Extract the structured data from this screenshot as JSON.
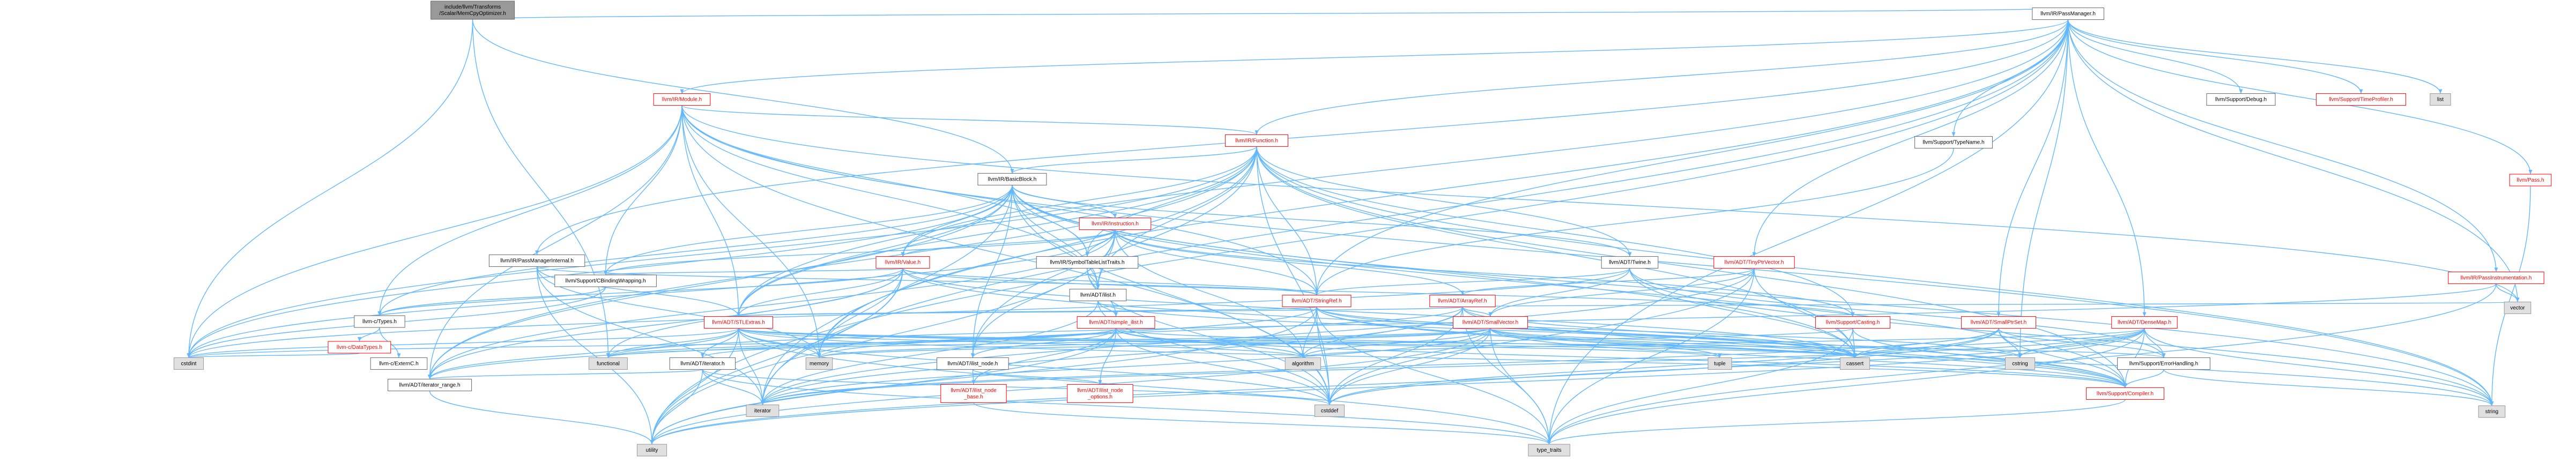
{
  "diagram": {
    "nodes": [
      {
        "id": "root",
        "lines": [
          "include/llvm/Transforms",
          "/Scalar/MemCpyOptimizer.h"
        ],
        "style": "root"
      },
      {
        "id": "passmanager",
        "lines": [
          "llvm/IR/PassManager.h"
        ],
        "style": "white"
      },
      {
        "id": "module",
        "lines": [
          "llvm/IR/Module.h"
        ],
        "style": "red"
      },
      {
        "id": "function",
        "lines": [
          "llvm/IR/Function.h"
        ],
        "style": "red"
      },
      {
        "id": "basicblock",
        "lines": [
          "llvm/IR/BasicBlock.h"
        ],
        "style": "white"
      },
      {
        "id": "instruction",
        "lines": [
          "llvm/IR/Instruction.h"
        ],
        "style": "red"
      },
      {
        "id": "passmanagerinternal",
        "lines": [
          "llvm/IR/PassManagerInternal.h"
        ],
        "style": "white"
      },
      {
        "id": "value",
        "lines": [
          "llvm/IR/Value.h"
        ],
        "style": "red"
      },
      {
        "id": "symboltable",
        "lines": [
          "llvm/IR/SymbolTableListTraits.h"
        ],
        "style": "white"
      },
      {
        "id": "twine",
        "lines": [
          "llvm/ADT/Twine.h"
        ],
        "style": "white"
      },
      {
        "id": "tinyptrvector",
        "lines": [
          "llvm/ADT/TinyPtrVector.h"
        ],
        "style": "red"
      },
      {
        "id": "cbinding",
        "lines": [
          "llvm/Support/CBindingWrapping.h"
        ],
        "style": "white"
      },
      {
        "id": "ilist",
        "lines": [
          "llvm/ADT/ilist.h"
        ],
        "style": "white"
      },
      {
        "id": "stringref",
        "lines": [
          "llvm/ADT/StringRef.h"
        ],
        "style": "red"
      },
      {
        "id": "arrayref",
        "lines": [
          "llvm/ADT/ArrayRef.h"
        ],
        "style": "red"
      },
      {
        "id": "ctypes",
        "lines": [
          "llvm-c/Types.h"
        ],
        "style": "white"
      },
      {
        "id": "stlextras",
        "lines": [
          "llvm/ADT/STLExtras.h"
        ],
        "style": "red"
      },
      {
        "id": "simpleilist",
        "lines": [
          "llvm/ADT/simple_ilist.h"
        ],
        "style": "red"
      },
      {
        "id": "smallvector",
        "lines": [
          "llvm/ADT/SmallVector.h"
        ],
        "style": "red"
      },
      {
        "id": "casting",
        "lines": [
          "llvm/Support/Casting.h"
        ],
        "style": "red"
      },
      {
        "id": "smallptrset",
        "lines": [
          "llvm/ADT/SmallPtrSet.h"
        ],
        "style": "red"
      },
      {
        "id": "densemap",
        "lines": [
          "llvm/ADT/DenseMap.h"
        ],
        "style": "red"
      },
      {
        "id": "datatypes",
        "lines": [
          "llvm-c/DataTypes.h"
        ],
        "style": "red"
      },
      {
        "id": "externc",
        "lines": [
          "llvm-c/ExternC.h"
        ],
        "style": "white"
      },
      {
        "id": "iterator",
        "lines": [
          "llvm/ADT/iterator.h"
        ],
        "style": "white"
      },
      {
        "id": "ilistnode",
        "lines": [
          "llvm/ADT/ilist_node.h"
        ],
        "style": "white"
      },
      {
        "id": "iteratorrange",
        "lines": [
          "llvm/ADT/iterator_range.h"
        ],
        "style": "white"
      },
      {
        "id": "ilistnodebase",
        "lines": [
          "llvm/ADT/ilist_node",
          "_base.h"
        ],
        "style": "red"
      },
      {
        "id": "ilistnodeoptions",
        "lines": [
          "llvm/ADT/ilist_node",
          "_options.h"
        ],
        "style": "red"
      },
      {
        "id": "compiler",
        "lines": [
          "llvm/Support/Compiler.h"
        ],
        "style": "red"
      },
      {
        "id": "errorhandling",
        "lines": [
          "llvm/Support/ErrorHandling.h"
        ],
        "style": "white"
      },
      {
        "id": "typename",
        "lines": [
          "llvm/Support/TypeName.h"
        ],
        "style": "white"
      },
      {
        "id": "debug",
        "lines": [
          "llvm/Support/Debug.h"
        ],
        "style": "white"
      },
      {
        "id": "timeprofiler",
        "lines": [
          "llvm/Support/TimeProfiler.h"
        ],
        "style": "red"
      },
      {
        "id": "list",
        "lines": [
          "list"
        ],
        "style": "grey"
      },
      {
        "id": "pass",
        "lines": [
          "llvm/Pass.h"
        ],
        "style": "red"
      },
      {
        "id": "passinstrumentation",
        "lines": [
          "llvm/IR/PassInstrumentation.h"
        ],
        "style": "red"
      },
      {
        "id": "vector",
        "lines": [
          "vector"
        ],
        "style": "grey"
      },
      {
        "id": "cstdint",
        "lines": [
          "cstdint"
        ],
        "style": "grey"
      },
      {
        "id": "functional",
        "lines": [
          "functional"
        ],
        "style": "grey"
      },
      {
        "id": "memory",
        "lines": [
          "memory"
        ],
        "style": "grey"
      },
      {
        "id": "algorithm",
        "lines": [
          "algorithm"
        ],
        "style": "grey"
      },
      {
        "id": "tuple",
        "lines": [
          "tuple"
        ],
        "style": "grey"
      },
      {
        "id": "cassert",
        "lines": [
          "cassert"
        ],
        "style": "grey"
      },
      {
        "id": "cstring",
        "lines": [
          "cstring"
        ],
        "style": "grey"
      },
      {
        "id": "iteratorstd",
        "lines": [
          "iterator"
        ],
        "style": "grey"
      },
      {
        "id": "cstddef",
        "lines": [
          "cstddef"
        ],
        "style": "grey"
      },
      {
        "id": "utility",
        "lines": [
          "utility"
        ],
        "style": "grey"
      },
      {
        "id": "typetraits",
        "lines": [
          "type_traits"
        ],
        "style": "grey"
      },
      {
        "id": "string",
        "lines": [
          "string"
        ],
        "style": "grey"
      }
    ],
    "edges": [
      [
        "root",
        "passmanager"
      ],
      [
        "root",
        "cstdint"
      ],
      [
        "root",
        "basicblock"
      ],
      [
        "root",
        "functional"
      ],
      [
        "passmanager",
        "module"
      ],
      [
        "passmanager",
        "function"
      ],
      [
        "passmanager",
        "passmanagerinternal"
      ],
      [
        "passmanager",
        "typename"
      ],
      [
        "passmanager",
        "debug"
      ],
      [
        "passmanager",
        "timeprofiler"
      ],
      [
        "passmanager",
        "list"
      ],
      [
        "passmanager",
        "pass"
      ],
      [
        "passmanager",
        "passinstrumentation"
      ],
      [
        "passmanager",
        "tinyptrvector"
      ],
      [
        "passmanager",
        "smallptrset"
      ],
      [
        "passmanager",
        "densemap"
      ],
      [
        "passmanager",
        "stringref"
      ],
      [
        "passmanager",
        "stlextras"
      ],
      [
        "passmanager",
        "vector"
      ],
      [
        "passmanager",
        "cstring"
      ],
      [
        "passmanager",
        "memory"
      ],
      [
        "passmanager",
        "typetraits"
      ],
      [
        "passmanager",
        "utility"
      ],
      [
        "passmanager",
        "iteratorstd"
      ],
      [
        "module",
        "function"
      ],
      [
        "module",
        "stringref"
      ],
      [
        "module",
        "ctypes"
      ],
      [
        "module",
        "cbinding"
      ],
      [
        "module",
        "iteratorrange"
      ],
      [
        "module",
        "stlextras"
      ],
      [
        "module",
        "symboltable"
      ],
      [
        "module",
        "ilist"
      ],
      [
        "module",
        "cstddef"
      ],
      [
        "module",
        "cstdint"
      ],
      [
        "module",
        "memory"
      ],
      [
        "module",
        "string"
      ],
      [
        "module",
        "vector"
      ],
      [
        "function",
        "basicblock"
      ],
      [
        "function",
        "twine"
      ],
      [
        "function",
        "ilist"
      ],
      [
        "function",
        "stringref"
      ],
      [
        "function",
        "value"
      ],
      [
        "function",
        "symboltable"
      ],
      [
        "function",
        "casting"
      ],
      [
        "function",
        "compiler"
      ],
      [
        "function",
        "stlextras"
      ],
      [
        "function",
        "cassert"
      ],
      [
        "function",
        "cstddef"
      ],
      [
        "function",
        "cstdint"
      ],
      [
        "function",
        "memory"
      ],
      [
        "function",
        "string"
      ],
      [
        "function",
        "iteratorrange"
      ],
      [
        "function",
        "ilistnode"
      ],
      [
        "basicblock",
        "instruction"
      ],
      [
        "basicblock",
        "value"
      ],
      [
        "basicblock",
        "symboltable"
      ],
      [
        "basicblock",
        "twine"
      ],
      [
        "basicblock",
        "ilist"
      ],
      [
        "basicblock",
        "ilistnode"
      ],
      [
        "basicblock",
        "iteratorstd"
      ],
      [
        "basicblock",
        "ctypes"
      ],
      [
        "basicblock",
        "cbinding"
      ],
      [
        "basicblock",
        "compiler"
      ],
      [
        "basicblock",
        "cassert"
      ],
      [
        "basicblock",
        "cstddef"
      ],
      [
        "basicblock",
        "iteratorrange"
      ],
      [
        "basicblock",
        "stlextras"
      ],
      [
        "basicblock",
        "cstdint"
      ],
      [
        "basicblock",
        "string"
      ],
      [
        "instruction",
        "value"
      ],
      [
        "instruction",
        "symboltable"
      ],
      [
        "instruction",
        "arrayref"
      ],
      [
        "instruction",
        "stringref"
      ],
      [
        "instruction",
        "ilist"
      ],
      [
        "instruction",
        "ilistnode"
      ],
      [
        "instruction",
        "casting"
      ],
      [
        "instruction",
        "cstdint"
      ],
      [
        "instruction",
        "utility"
      ],
      [
        "instruction",
        "iteratorrange"
      ],
      [
        "instruction",
        "cbinding"
      ],
      [
        "instruction",
        "algorithm"
      ],
      [
        "passmanagerinternal",
        "stlextras"
      ],
      [
        "passmanagerinternal",
        "stringref"
      ],
      [
        "passmanagerinternal",
        "memory"
      ],
      [
        "passmanagerinternal",
        "utility"
      ],
      [
        "passmanagerinternal",
        "iteratorstd"
      ],
      [
        "value",
        "ctypes"
      ],
      [
        "value",
        "cbinding"
      ],
      [
        "value",
        "stlextras"
      ],
      [
        "value",
        "stringref"
      ],
      [
        "value",
        "iteratorrange"
      ],
      [
        "value",
        "casting"
      ],
      [
        "value",
        "compiler"
      ],
      [
        "value",
        "cassert"
      ],
      [
        "value",
        "iteratorstd"
      ],
      [
        "value",
        "memory"
      ],
      [
        "value",
        "functional"
      ],
      [
        "value",
        "utility"
      ],
      [
        "symboltable",
        "ilist"
      ],
      [
        "symboltable",
        "simpleilist"
      ],
      [
        "symboltable",
        "cstddef"
      ],
      [
        "twine",
        "smallvector"
      ],
      [
        "twine",
        "stringref"
      ],
      [
        "twine",
        "errorhandling"
      ],
      [
        "twine",
        "cassert"
      ],
      [
        "twine",
        "cstdint"
      ],
      [
        "twine",
        "string"
      ],
      [
        "tinyptrvector",
        "arrayref"
      ],
      [
        "tinyptrvector",
        "smallvector"
      ],
      [
        "tinyptrvector",
        "cassert"
      ],
      [
        "tinyptrvector",
        "cstddef"
      ],
      [
        "tinyptrvector",
        "iteratorstd"
      ],
      [
        "tinyptrvector",
        "typetraits"
      ],
      [
        "cbinding",
        "ctypes"
      ],
      [
        "cbinding",
        "cstdint"
      ],
      [
        "ilist",
        "simpleilist"
      ],
      [
        "ilist",
        "cassert"
      ],
      [
        "ilist",
        "cstddef"
      ],
      [
        "ilist",
        "iteratorstd"
      ],
      [
        "stringref",
        "stlextras"
      ],
      [
        "stringref",
        "iteratorrange"
      ],
      [
        "stringref",
        "compiler"
      ],
      [
        "stringref",
        "algorithm"
      ],
      [
        "stringref",
        "cassert"
      ],
      [
        "stringref",
        "cstddef"
      ],
      [
        "stringref",
        "cstring"
      ],
      [
        "stringref",
        "limits"
      ],
      [
        "stringref",
        "string"
      ],
      [
        "stringref",
        "typetraits"
      ],
      [
        "stringref",
        "utility"
      ],
      [
        "arrayref",
        "stlextras"
      ],
      [
        "arrayref",
        "smallvector"
      ],
      [
        "arrayref",
        "compiler"
      ],
      [
        "arrayref",
        "algorithm"
      ],
      [
        "arrayref",
        "cassert"
      ],
      [
        "arrayref",
        "cstddef"
      ],
      [
        "arrayref",
        "iteratorstd"
      ],
      [
        "arrayref",
        "memory"
      ],
      [
        "arrayref",
        "typetraits"
      ],
      [
        "arrayref",
        "vector"
      ],
      [
        "ctypes",
        "datatypes"
      ],
      [
        "ctypes",
        "externc"
      ],
      [
        "stlextras",
        "iterator"
      ],
      [
        "stlextras",
        "iteratorrange"
      ],
      [
        "stlextras",
        "compiler"
      ],
      [
        "stlextras",
        "algorithm"
      ],
      [
        "stlextras",
        "cassert"
      ],
      [
        "stlextras",
        "cstddef"
      ],
      [
        "stlextras",
        "cstdint"
      ],
      [
        "stlextras",
        "functional"
      ],
      [
        "stlextras",
        "memory"
      ],
      [
        "stlextras",
        "tuple"
      ],
      [
        "stlextras",
        "typetraits"
      ],
      [
        "stlextras",
        "utility"
      ],
      [
        "stlextras",
        "iteratorstd"
      ],
      [
        "stlextras",
        "errorhandling"
      ],
      [
        "simpleilist",
        "ilistnodebase"
      ],
      [
        "simpleilist",
        "ilistnodeoptions"
      ],
      [
        "simpleilist",
        "ilistnode"
      ],
      [
        "simpleilist",
        "iterator"
      ],
      [
        "simpleilist",
        "compiler"
      ],
      [
        "simpleilist",
        "algorithm"
      ],
      [
        "simpleilist",
        "cassert"
      ],
      [
        "simpleilist",
        "cstddef"
      ],
      [
        "simpleilist",
        "functional"
      ],
      [
        "simpleilist",
        "utility"
      ],
      [
        "smallvector",
        "compiler"
      ],
      [
        "smallvector",
        "algorithm"
      ],
      [
        "smallvector",
        "cassert"
      ],
      [
        "smallvector",
        "cstddef"
      ],
      [
        "smallvector",
        "cstdint"
      ],
      [
        "smallvector",
        "cstring"
      ],
      [
        "smallvector",
        "functional"
      ],
      [
        "smallvector",
        "iteratorstd"
      ],
      [
        "smallvector",
        "memory"
      ],
      [
        "smallvector",
        "tuple"
      ],
      [
        "smallvector",
        "typetraits"
      ],
      [
        "smallvector",
        "utility"
      ],
      [
        "casting",
        "compiler"
      ],
      [
        "casting",
        "cassert"
      ],
      [
        "casting",
        "memory"
      ],
      [
        "casting",
        "typetraits"
      ],
      [
        "smallptrset",
        "compiler"
      ],
      [
        "smallptrset",
        "errorhandling"
      ],
      [
        "smallptrset",
        "cassert"
      ],
      [
        "smallptrset",
        "cstddef"
      ],
      [
        "smallptrset",
        "cstring"
      ],
      [
        "smallptrset",
        "iteratorstd"
      ],
      [
        "smallptrset",
        "utility"
      ],
      [
        "densemap",
        "compiler"
      ],
      [
        "densemap",
        "errorhandling"
      ],
      [
        "densemap",
        "algorithm"
      ],
      [
        "densemap",
        "cassert"
      ],
      [
        "densemap",
        "cstddef"
      ],
      [
        "densemap",
        "cstring"
      ],
      [
        "densemap",
        "iteratorstd"
      ],
      [
        "densemap",
        "typetraits"
      ],
      [
        "densemap",
        "utility"
      ],
      [
        "densemap",
        "string"
      ],
      [
        "datatypes",
        "cstdint"
      ],
      [
        "iterator",
        "iteratorrange"
      ],
      [
        "iterator",
        "cstddef"
      ],
      [
        "iterator",
        "iteratorstd"
      ],
      [
        "iterator",
        "typetraits"
      ],
      [
        "iterator",
        "utility"
      ],
      [
        "ilistnode",
        "ilistnodebase"
      ],
      [
        "ilistnode",
        "ilistnodeoptions"
      ],
      [
        "iteratorrange",
        "utility"
      ],
      [
        "ilistnodebase",
        "typetraits"
      ],
      [
        "errorhandling",
        "compiler"
      ],
      [
        "errorhandling",
        "string"
      ],
      [
        "typename",
        "stringref"
      ],
      [
        "pass",
        "string"
      ],
      [
        "passinstrumentation",
        "vector"
      ],
      [
        "passinstrumentation",
        "typetraits"
      ],
      [
        "passinstrumentation",
        "functional"
      ],
      [
        "compiler",
        "typetraits"
      ]
    ]
  }
}
